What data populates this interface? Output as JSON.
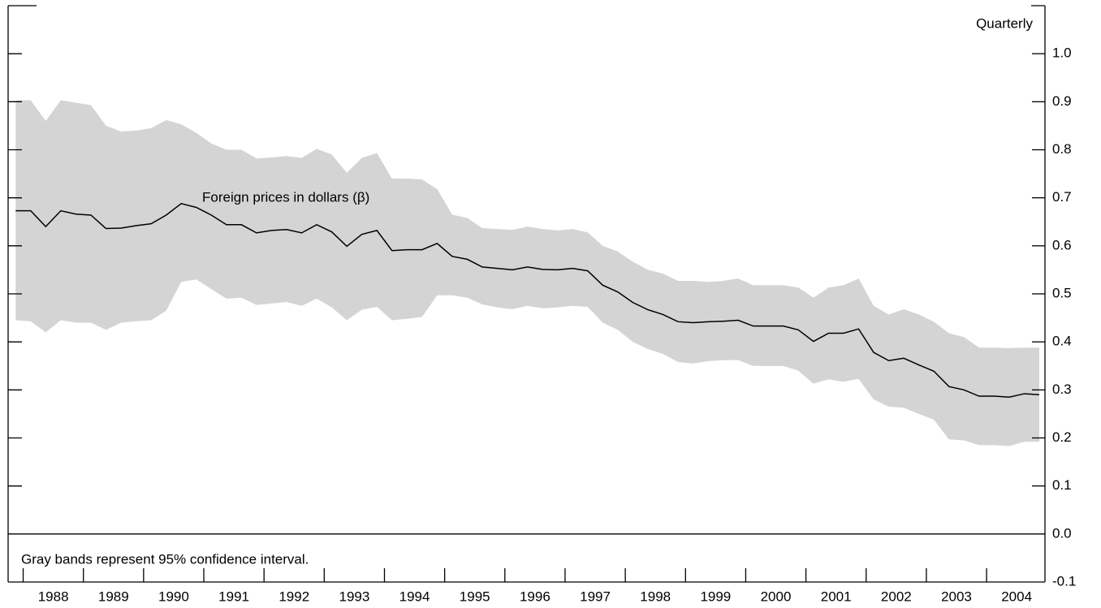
{
  "chart_data": {
    "type": "line",
    "annotations": {
      "label": "Foreign prices in dollars (β)",
      "frequency": "Quarterly",
      "note": "Gray bands represent 95% confidence interval."
    },
    "x": [
      1987.875,
      1988.125,
      1988.375,
      1988.625,
      1988.875,
      1989.125,
      1989.375,
      1989.625,
      1989.875,
      1990.125,
      1990.375,
      1990.625,
      1990.875,
      1991.125,
      1991.375,
      1991.625,
      1991.875,
      1992.125,
      1992.375,
      1992.625,
      1992.875,
      1993.125,
      1993.375,
      1993.625,
      1993.875,
      1994.125,
      1994.375,
      1994.625,
      1994.875,
      1995.125,
      1995.375,
      1995.625,
      1995.875,
      1996.125,
      1996.375,
      1996.625,
      1996.875,
      1997.125,
      1997.375,
      1997.625,
      1997.875,
      1998.125,
      1998.375,
      1998.625,
      1998.875,
      1999.125,
      1999.375,
      1999.625,
      1999.875,
      2000.125,
      2000.375,
      2000.625,
      2000.875,
      2001.125,
      2001.375,
      2001.625,
      2001.875,
      2002.125,
      2002.375,
      2002.625,
      2002.875,
      2003.125,
      2003.375,
      2003.625,
      2003.875,
      2004.125,
      2004.375,
      2004.625,
      2004.875
    ],
    "series": [
      {
        "color": "#000000",
        "values": [
          0.673,
          0.673,
          0.64,
          0.673,
          0.666,
          0.664,
          0.636,
          0.637,
          0.642,
          0.646,
          0.664,
          0.688,
          0.68,
          0.664,
          0.644,
          0.644,
          0.627,
          0.632,
          0.634,
          0.627,
          0.644,
          0.629,
          0.599,
          0.624,
          0.632,
          0.59,
          0.592,
          0.592,
          0.605,
          0.578,
          0.572,
          0.556,
          0.553,
          0.55,
          0.556,
          0.551,
          0.55,
          0.553,
          0.548,
          0.518,
          0.504,
          0.482,
          0.467,
          0.457,
          0.442,
          0.44,
          0.442,
          0.443,
          0.445,
          0.433,
          0.433,
          0.433,
          0.425,
          0.401,
          0.418,
          0.418,
          0.427,
          0.378,
          0.361,
          0.366,
          0.352,
          0.339,
          0.307,
          0.3,
          0.287,
          0.287,
          0.285,
          0.292,
          0.29
        ]
      }
    ],
    "band": {
      "color": "#d4d4d4",
      "upper": [
        0.903,
        0.903,
        0.86,
        0.903,
        0.898,
        0.893,
        0.85,
        0.838,
        0.84,
        0.845,
        0.862,
        0.853,
        0.835,
        0.813,
        0.8,
        0.8,
        0.782,
        0.784,
        0.787,
        0.783,
        0.802,
        0.79,
        0.752,
        0.783,
        0.793,
        0.74,
        0.74,
        0.738,
        0.718,
        0.665,
        0.658,
        0.637,
        0.635,
        0.633,
        0.64,
        0.635,
        0.632,
        0.635,
        0.628,
        0.6,
        0.588,
        0.567,
        0.55,
        0.542,
        0.527,
        0.527,
        0.525,
        0.527,
        0.532,
        0.518,
        0.518,
        0.518,
        0.513,
        0.492,
        0.513,
        0.518,
        0.532,
        0.475,
        0.457,
        0.468,
        0.457,
        0.442,
        0.418,
        0.41,
        0.388,
        0.388,
        0.387,
        0.388,
        0.388
      ],
      "lower": [
        0.445,
        0.443,
        0.42,
        0.445,
        0.44,
        0.44,
        0.425,
        0.44,
        0.443,
        0.445,
        0.465,
        0.525,
        0.53,
        0.51,
        0.49,
        0.492,
        0.477,
        0.48,
        0.483,
        0.475,
        0.49,
        0.472,
        0.445,
        0.467,
        0.473,
        0.445,
        0.448,
        0.452,
        0.497,
        0.497,
        0.492,
        0.478,
        0.472,
        0.468,
        0.475,
        0.47,
        0.472,
        0.475,
        0.473,
        0.44,
        0.425,
        0.4,
        0.385,
        0.375,
        0.358,
        0.355,
        0.36,
        0.362,
        0.362,
        0.35,
        0.35,
        0.35,
        0.34,
        0.313,
        0.322,
        0.317,
        0.323,
        0.28,
        0.265,
        0.263,
        0.25,
        0.238,
        0.197,
        0.195,
        0.185,
        0.185,
        0.183,
        0.192,
        0.192
      ]
    },
    "xlim": [
      1987.75,
      2004.97
    ],
    "xticks": [
      {
        "value": 1988.5,
        "label": "1988"
      },
      {
        "value": 1989.5,
        "label": "1989"
      },
      {
        "value": 1990.5,
        "label": "1990"
      },
      {
        "value": 1991.5,
        "label": "1991"
      },
      {
        "value": 1992.5,
        "label": "1992"
      },
      {
        "value": 1993.5,
        "label": "1993"
      },
      {
        "value": 1994.5,
        "label": "1994"
      },
      {
        "value": 1995.5,
        "label": "1995"
      },
      {
        "value": 1996.5,
        "label": "1996"
      },
      {
        "value": 1997.5,
        "label": "1997"
      },
      {
        "value": 1998.5,
        "label": "1998"
      },
      {
        "value": 1999.5,
        "label": "1999"
      },
      {
        "value": 2000.5,
        "label": "2000"
      },
      {
        "value": 2001.5,
        "label": "2001"
      },
      {
        "value": 2002.5,
        "label": "2002"
      },
      {
        "value": 2003.5,
        "label": "2003"
      },
      {
        "value": 2004.5,
        "label": "2004"
      }
    ],
    "ylim": [
      -0.1,
      1.1
    ],
    "yticks": [
      -0.1,
      {
        "value": 0,
        "label": "0.0"
      },
      0.1,
      0.2,
      0.3,
      0.4,
      0.5,
      0.6,
      0.7,
      0.8,
      0.9,
      {
        "value": 1,
        "label": "1.0"
      }
    ],
    "zero_line": true
  }
}
